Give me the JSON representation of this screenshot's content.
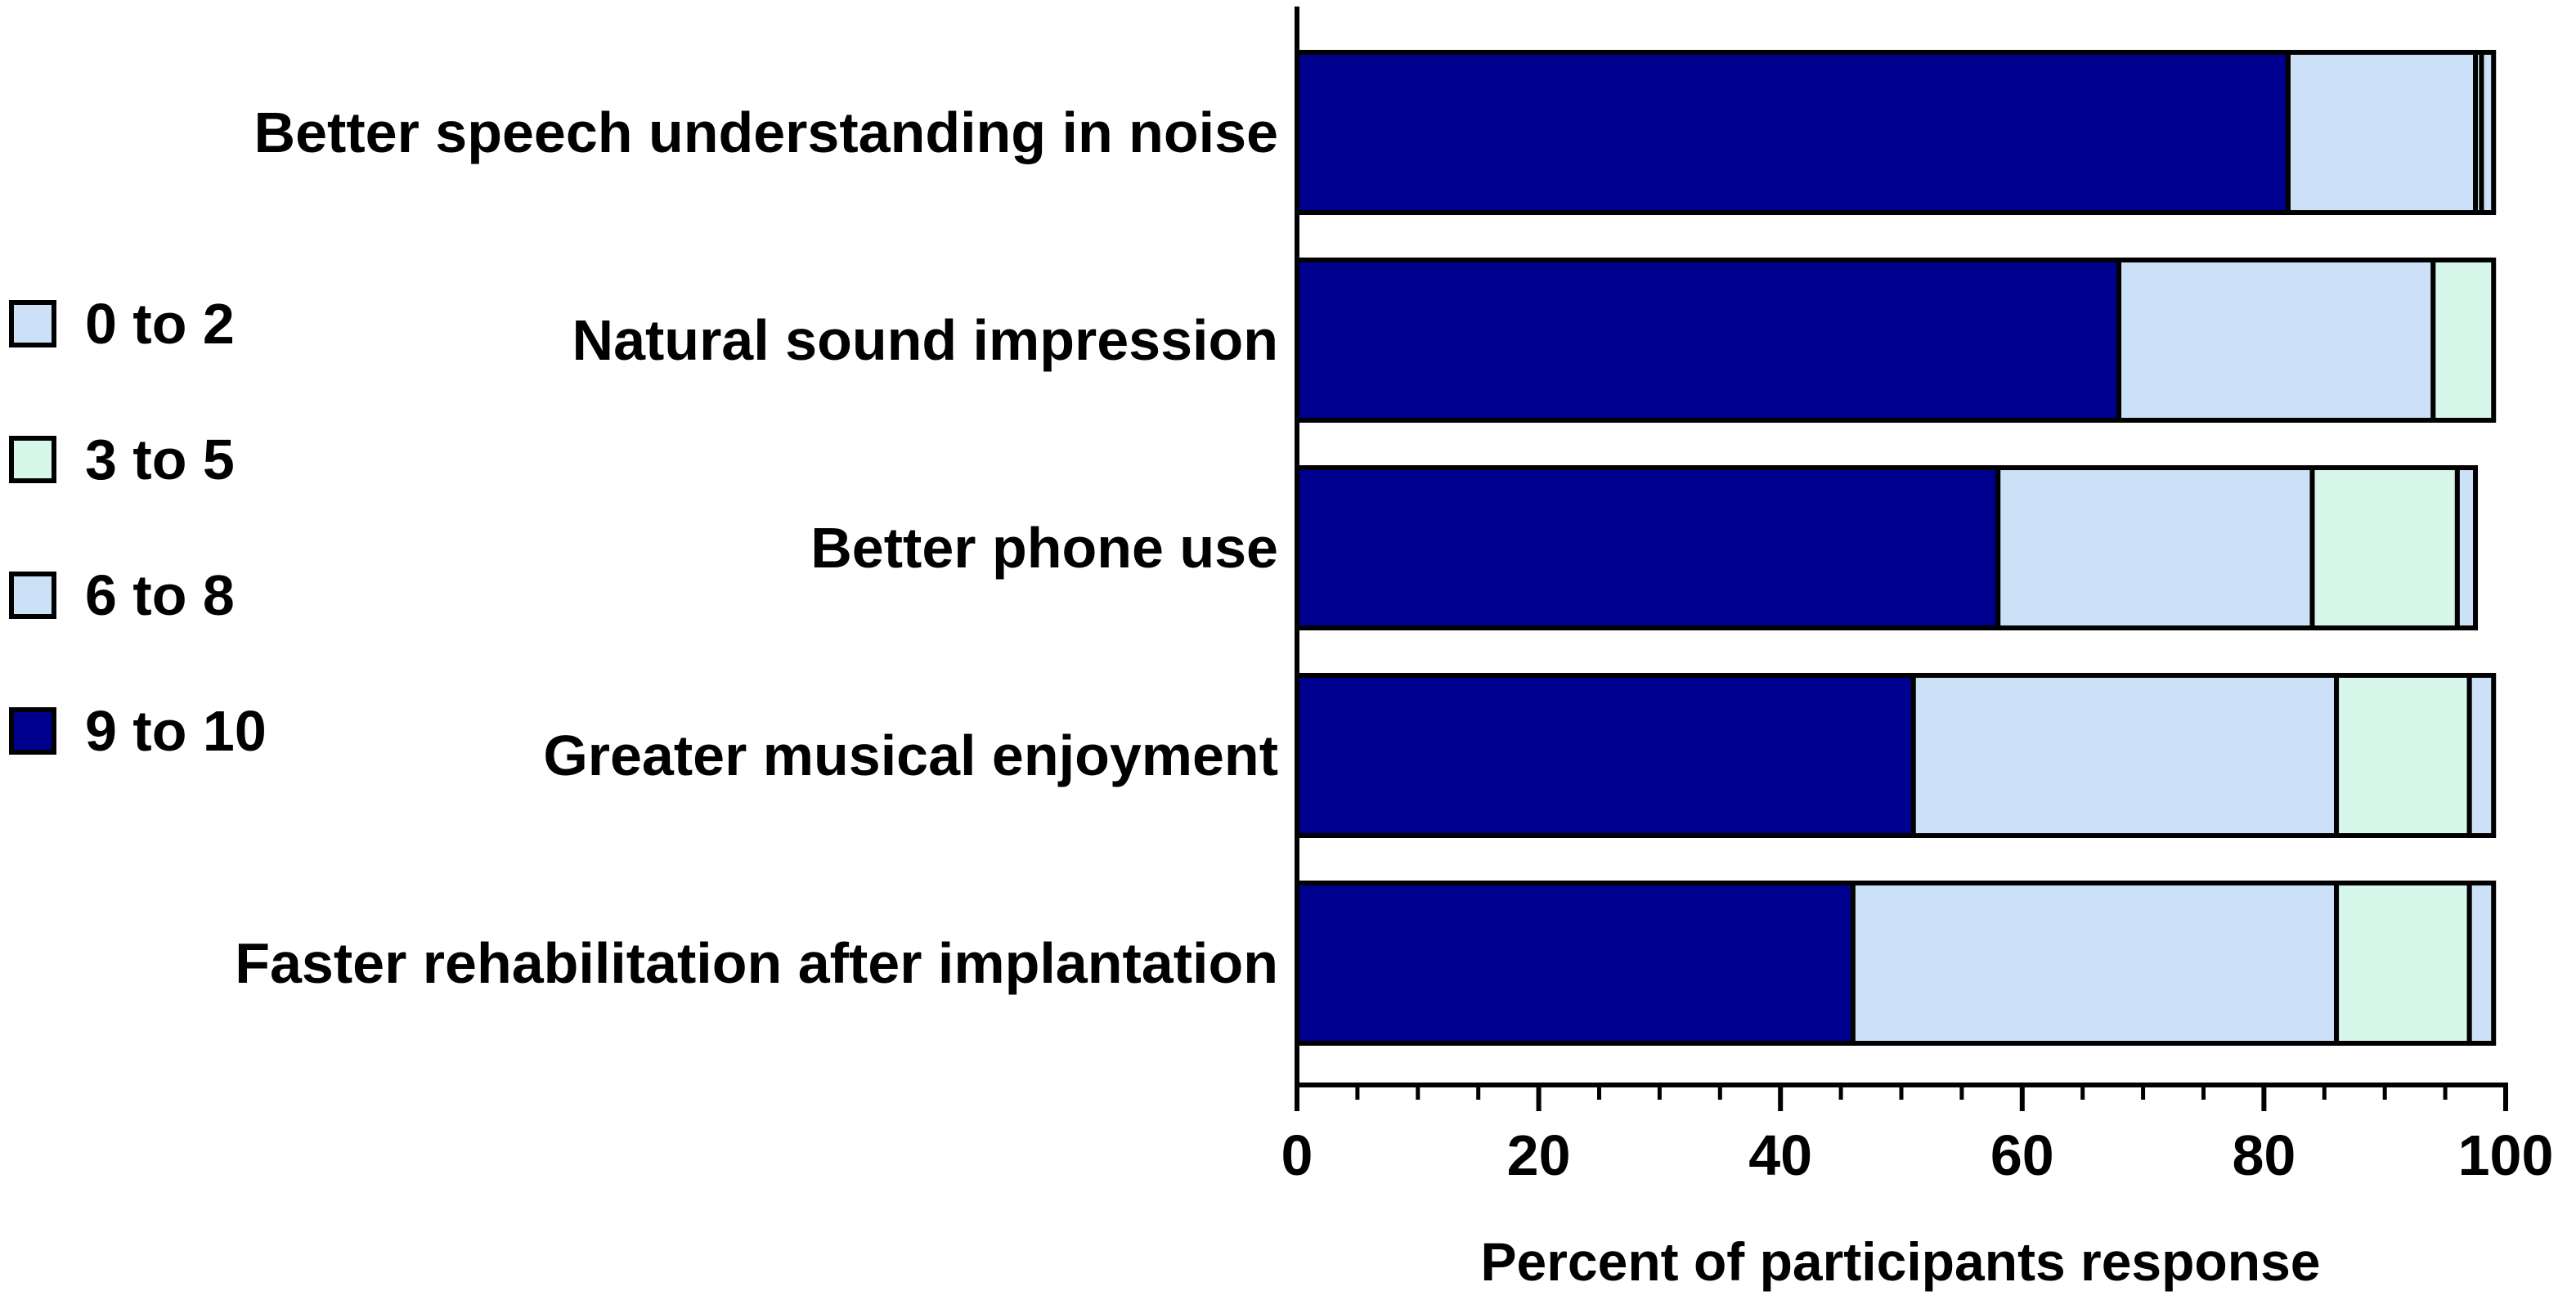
{
  "chart_data": {
    "type": "bar",
    "orientation": "horizontal",
    "stacked": true,
    "categories": [
      "Better speech understanding in noise",
      "Natural sound impression",
      "Better phone use",
      "Greater musical enjoyment",
      "Faster rehabilitation after implantation"
    ],
    "series": [
      {
        "name": "9 to 10",
        "color": "#00008f",
        "values": [
          82,
          68,
          58,
          51,
          46
        ]
      },
      {
        "name": "6 to 8",
        "color": "#cce0f8",
        "values": [
          15.5,
          26,
          26,
          35,
          40
        ]
      },
      {
        "name": "3 to 5",
        "color": "#d8f7eb",
        "values": [
          0.5,
          5,
          12,
          11,
          11
        ]
      },
      {
        "name": "0 to 2",
        "color": "#cce0f8",
        "values": [
          1,
          0,
          1.5,
          2,
          2
        ]
      }
    ],
    "legend": {
      "placement": "left",
      "entries": [
        {
          "label": "0 to 2",
          "color": "#cce0f8"
        },
        {
          "label": "3 to 5",
          "color": "#d8f7eb"
        },
        {
          "label": "6 to 8",
          "color": "#cce0f8"
        },
        {
          "label": "9 to 10",
          "color": "#00008f"
        }
      ]
    },
    "xlabel": "Percent of participants response",
    "ylabel": "",
    "title": "",
    "xlim": [
      0,
      100
    ],
    "xticks": [
      0,
      20,
      40,
      60,
      80,
      100
    ],
    "xticks_minor_step": 5,
    "grid": false
  }
}
